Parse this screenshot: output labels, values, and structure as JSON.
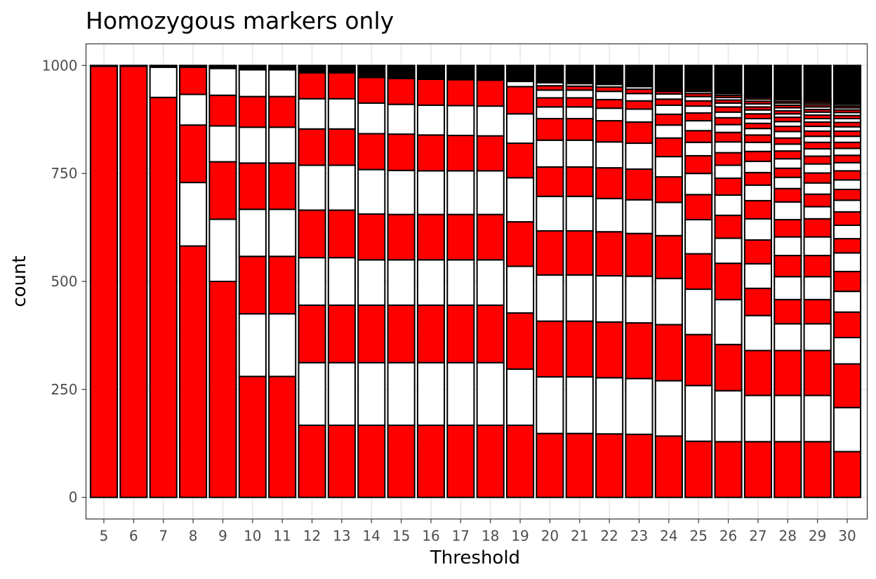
{
  "chart_data": {
    "type": "bar",
    "stacked": true,
    "title": "Homozygous markers only",
    "xlabel": "Threshold",
    "ylabel": "count",
    "ylim": [
      -50,
      1050
    ],
    "y_ticks": [
      0,
      250,
      500,
      750,
      1000
    ],
    "y_tick_labels": [
      "0",
      "250",
      "500",
      "750",
      "1000"
    ],
    "grid": true,
    "legend": "none",
    "colors": {
      "odd_segment": "#ff0000",
      "even_segment": "#ffffff",
      "tail_segments": "#000000",
      "outline": "#000000"
    },
    "categories": [
      "5",
      "6",
      "7",
      "8",
      "9",
      "10",
      "11",
      "12",
      "13",
      "14",
      "15",
      "16",
      "17",
      "18",
      "19",
      "20",
      "21",
      "22",
      "23",
      "24",
      "25",
      "26",
      "27",
      "28",
      "29",
      "30"
    ],
    "segment_boundaries": [
      [
        0,
        998,
        1000
      ],
      [
        0,
        998,
        1000
      ],
      [
        0,
        926,
        996,
        1000
      ],
      [
        0,
        582,
        729,
        862,
        933,
        996,
        1000
      ],
      [
        0,
        500,
        644,
        777,
        860,
        931,
        993,
        1000
      ],
      [
        0,
        280,
        425,
        558,
        667,
        774,
        857,
        928,
        990,
        1000
      ],
      [
        0,
        280,
        425,
        558,
        667,
        774,
        857,
        928,
        990,
        1000
      ],
      [
        0,
        167,
        312,
        445,
        555,
        665,
        769,
        853,
        923,
        983,
        1000
      ],
      [
        0,
        167,
        312,
        445,
        555,
        665,
        769,
        853,
        923,
        983,
        1000
      ],
      [
        0,
        167,
        312,
        445,
        550,
        656,
        759,
        842,
        913,
        972,
        1000
      ],
      [
        0,
        167,
        312,
        445,
        550,
        655,
        757,
        841,
        910,
        970,
        1000
      ],
      [
        0,
        167,
        312,
        445,
        550,
        655,
        756,
        839,
        908,
        968,
        1000
      ],
      [
        0,
        167,
        312,
        445,
        550,
        655,
        756,
        838,
        907,
        967,
        1000
      ],
      [
        0,
        167,
        312,
        445,
        550,
        655,
        756,
        837,
        906,
        966,
        1000
      ],
      [
        0,
        167,
        297,
        427,
        535,
        638,
        740,
        820,
        888,
        951,
        963,
        1000
      ],
      [
        0,
        148,
        279,
        408,
        515,
        617,
        697,
        765,
        827,
        877,
        904,
        925,
        943,
        953,
        960,
        1000
      ],
      [
        0,
        148,
        279,
        408,
        515,
        617,
        697,
        765,
        827,
        877,
        904,
        925,
        943,
        952,
        958,
        1000
      ],
      [
        0,
        147,
        277,
        406,
        513,
        615,
        692,
        763,
        823,
        872,
        901,
        921,
        940,
        950,
        956,
        1000
      ],
      [
        0,
        146,
        275,
        404,
        512,
        611,
        689,
        760,
        820,
        869,
        899,
        918,
        935,
        945,
        951,
        1000
      ],
      [
        0,
        142,
        270,
        400,
        507,
        606,
        683,
        742,
        789,
        832,
        862,
        887,
        908,
        922,
        934,
        940,
        1000
      ],
      [
        0,
        130,
        259,
        377,
        482,
        564,
        643,
        701,
        750,
        791,
        822,
        849,
        872,
        890,
        906,
        918,
        928,
        935,
        940,
        1000
      ],
      [
        0,
        129,
        247,
        354,
        458,
        542,
        600,
        653,
        700,
        739,
        769,
        798,
        823,
        845,
        863,
        879,
        892,
        904,
        913,
        920,
        926,
        931,
        935,
        1000
      ],
      [
        0,
        129,
        236,
        340,
        421,
        484,
        541,
        596,
        645,
        687,
        723,
        752,
        778,
        801,
        822,
        839,
        854,
        866,
        877,
        888,
        897,
        904,
        911,
        917,
        922,
        926,
        929,
        932,
        1000
      ],
      [
        0,
        129,
        236,
        340,
        402,
        458,
        511,
        560,
        603,
        643,
        684,
        715,
        741,
        762,
        784,
        802,
        818,
        832,
        847,
        859,
        870,
        880,
        888,
        895,
        902,
        908,
        913,
        917,
        921,
        924,
        927,
        1000
      ],
      [
        0,
        129,
        236,
        340,
        402,
        458,
        511,
        560,
        603,
        645,
        673,
        702,
        728,
        751,
        772,
        790,
        807,
        822,
        836,
        848,
        859,
        869,
        877,
        885,
        892,
        898,
        904,
        909,
        913,
        917,
        920,
        923,
        1000
      ],
      [
        0,
        106,
        208,
        309,
        370,
        429,
        477,
        523,
        566,
        599,
        630,
        661,
        688,
        713,
        735,
        756,
        775,
        792,
        808,
        822,
        836,
        848,
        858,
        868,
        877,
        884,
        891,
        897,
        902,
        906,
        910,
        913,
        916,
        1000
      ]
    ]
  }
}
